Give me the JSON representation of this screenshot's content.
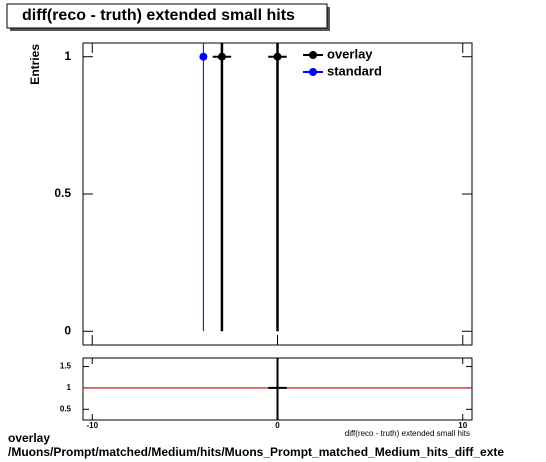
{
  "chart_data": [
    {
      "type": "errorbar",
      "title": "diff(reco - truth) extended small hits",
      "ylabel": "Entries",
      "xlim": [
        -10.5,
        10.5
      ],
      "ylim": [
        -0.05,
        1.05
      ],
      "xticks": [
        -10,
        0,
        10
      ],
      "yticks": [
        0,
        0.5,
        1
      ],
      "legend": "top-right",
      "series": [
        {
          "name": "overlay",
          "color": "#000000",
          "x": [
            -3,
            0
          ],
          "values": [
            1,
            1
          ],
          "xerr": [
            0.5,
            0.5
          ],
          "yerr": [
            1,
            1
          ]
        },
        {
          "name": "standard",
          "color": "#0000ff",
          "x": [
            -4
          ],
          "values": [
            1
          ],
          "yerr": [
            1
          ]
        }
      ]
    },
    {
      "type": "errorbar",
      "xlabel": "diff(reco - truth) extended small hits",
      "xlim": [
        -10.5,
        10.5
      ],
      "ylim": [
        0.25,
        1.7
      ],
      "xticks": [
        -10,
        0,
        10
      ],
      "yticks": [
        0.5,
        1,
        1.5
      ],
      "reference_line": 1,
      "reference_color": "#cc0000",
      "series": [
        {
          "color": "#000000",
          "x": [
            0
          ],
          "values": [
            1
          ],
          "xerr": [
            0.5
          ],
          "yerr": [
            1
          ]
        }
      ]
    }
  ],
  "footer_lines": [
    "overlay",
    "/Muons/Prompt/matched/Medium/hits/Muons_Prompt_matched_Medium_hits_diff_exte"
  ]
}
